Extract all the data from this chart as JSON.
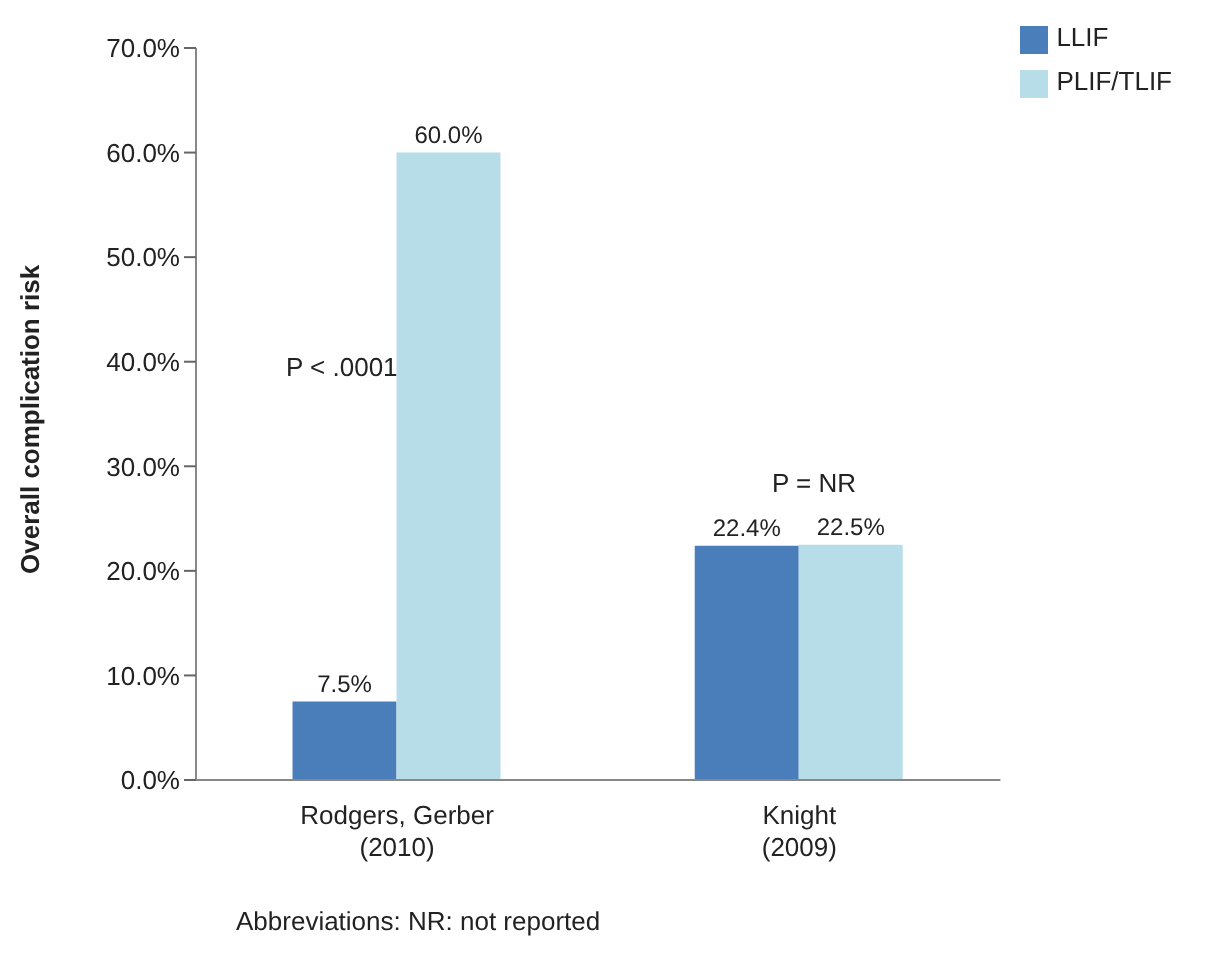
{
  "chart_data": {
    "type": "bar",
    "ylabel": "Overall complication risk",
    "categories": [
      "Rodgers, Gerber\n(2010)",
      "Knight\n(2009)"
    ],
    "series": [
      {
        "name": "LLIF",
        "color": "#4a7ebb",
        "values": [
          7.5,
          22.4
        ],
        "value_labels": [
          "7.5%",
          "22.4%"
        ]
      },
      {
        "name": "PLIF/TLIF",
        "color": "#b7dde8",
        "values": [
          60.0,
          22.5
        ],
        "value_labels": [
          "60.0%",
          "22.5%"
        ]
      }
    ],
    "ylim": [
      0,
      70
    ],
    "yticks": [
      {
        "value": 0,
        "label": "0.0%"
      },
      {
        "value": 10,
        "label": "10.0%"
      },
      {
        "value": 20,
        "label": "20.0%"
      },
      {
        "value": 30,
        "label": "30.0%"
      },
      {
        "value": 40,
        "label": "40.0%"
      },
      {
        "value": 50,
        "label": "50.0%"
      },
      {
        "value": 60,
        "label": "60.0%"
      },
      {
        "value": 70,
        "label": "70.0%"
      }
    ],
    "grid": false,
    "legend": "top right",
    "annotations": [
      "P < .0001",
      "P = NR",
      "Abbreviations: NR: not reported"
    ]
  }
}
